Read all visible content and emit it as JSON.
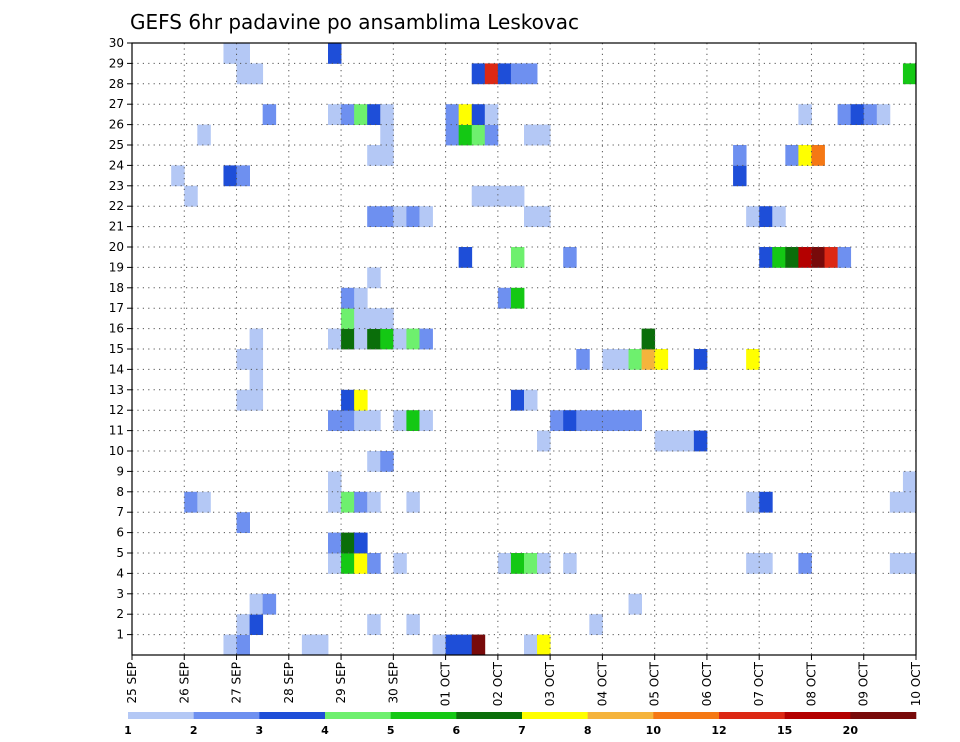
{
  "chart_data": {
    "type": "heatmap",
    "title": "GEFS 6hr padavine po ansamblima Leskovac",
    "y_ticks": [
      "1",
      "2",
      "3",
      "4",
      "5",
      "6",
      "7",
      "8",
      "9",
      "10",
      "11",
      "12",
      "13",
      "14",
      "15",
      "16",
      "17",
      "18",
      "19",
      "20",
      "21",
      "22",
      "23",
      "24",
      "25",
      "26",
      "27",
      "28",
      "29",
      "30"
    ],
    "x_ticks": [
      "25 SEP",
      "26 SEP",
      "27 SEP",
      "28 SEP",
      "29 SEP",
      "30 SEP",
      "01 OCT",
      "02 OCT",
      "03 OCT",
      "04 OCT",
      "05 OCT",
      "06 OCT",
      "07 OCT",
      "08 OCT",
      "09 OCT",
      "10 OCT"
    ],
    "x_range": [
      "2017-09-25T00",
      "2017-10-10T00"
    ],
    "y_range": [
      0,
      30
    ],
    "grid": true,
    "colorbar": {
      "labels": [
        "1",
        "2",
        "3",
        "4",
        "5",
        "6",
        "7",
        "8",
        "10",
        "12",
        "15",
        "20"
      ],
      "colors": [
        "#b4c8f5",
        "#6e90f0",
        "#1e4ed8",
        "#6ef06e",
        "#14c814",
        "#0a6e0a",
        "#ffff00",
        "#f5b43c",
        "#f57814",
        "#dc2814",
        "#b40000",
        "#780a0a"
      ]
    },
    "cells": [
      {
        "t": "2017-09-26T18",
        "m": 0,
        "v": 1
      },
      {
        "t": "2017-09-27T00",
        "m": 0,
        "v": 2
      },
      {
        "t": "2017-09-28T06",
        "m": 0,
        "v": 1
      },
      {
        "t": "2017-09-28T12",
        "m": 0,
        "v": 1
      },
      {
        "t": "2017-09-30T18",
        "m": 0,
        "v": 1
      },
      {
        "t": "2017-10-01T00",
        "m": 0,
        "v": 3
      },
      {
        "t": "2017-10-01T06",
        "m": 0,
        "v": 3
      },
      {
        "t": "2017-10-01T12",
        "m": 0,
        "v": 20
      },
      {
        "t": "2017-10-02T12",
        "m": 0,
        "v": 1
      },
      {
        "t": "2017-10-02T18",
        "m": 0,
        "v": 7
      },
      {
        "t": "2017-09-27T00",
        "m": 1,
        "v": 1
      },
      {
        "t": "2017-09-27T06",
        "m": 1,
        "v": 3
      },
      {
        "t": "2017-09-29T12",
        "m": 1,
        "v": 1
      },
      {
        "t": "2017-09-30T06",
        "m": 1,
        "v": 1
      },
      {
        "t": "2017-10-03T18",
        "m": 1,
        "v": 1
      },
      {
        "t": "2017-09-27T06",
        "m": 2,
        "v": 1
      },
      {
        "t": "2017-09-27T12",
        "m": 2,
        "v": 2
      },
      {
        "t": "2017-10-04T12",
        "m": 2,
        "v": 1
      },
      {
        "t": "2017-09-28T18",
        "m": 4,
        "v": 1
      },
      {
        "t": "2017-09-29T00",
        "m": 4,
        "v": 5
      },
      {
        "t": "2017-09-29T06",
        "m": 4,
        "v": 7
      },
      {
        "t": "2017-09-29T12",
        "m": 4,
        "v": 2
      },
      {
        "t": "2017-09-30T00",
        "m": 4,
        "v": 1
      },
      {
        "t": "2017-10-02T00",
        "m": 4,
        "v": 1
      },
      {
        "t": "2017-10-02T06",
        "m": 4,
        "v": 5
      },
      {
        "t": "2017-10-02T12",
        "m": 4,
        "v": 4
      },
      {
        "t": "2017-10-02T18",
        "m": 4,
        "v": 1
      },
      {
        "t": "2017-10-03T06",
        "m": 4,
        "v": 1
      },
      {
        "t": "2017-10-06T18",
        "m": 4,
        "v": 1
      },
      {
        "t": "2017-10-07T00",
        "m": 4,
        "v": 1
      },
      {
        "t": "2017-10-07T18",
        "m": 4,
        "v": 2
      },
      {
        "t": "2017-10-09T12",
        "m": 4,
        "v": 1
      },
      {
        "t": "2017-10-09T18",
        "m": 4,
        "v": 1
      },
      {
        "t": "2017-09-28T18",
        "m": 5,
        "v": 2
      },
      {
        "t": "2017-09-29T00",
        "m": 5,
        "v": 6
      },
      {
        "t": "2017-09-29T06",
        "m": 5,
        "v": 3
      },
      {
        "t": "2017-09-27T00",
        "m": 6,
        "v": 2
      },
      {
        "t": "2017-09-26T00",
        "m": 7,
        "v": 2
      },
      {
        "t": "2017-09-26T06",
        "m": 7,
        "v": 1
      },
      {
        "t": "2017-09-28T18",
        "m": 7,
        "v": 1
      },
      {
        "t": "2017-09-29T00",
        "m": 7,
        "v": 4
      },
      {
        "t": "2017-09-29T06",
        "m": 7,
        "v": 2
      },
      {
        "t": "2017-09-29T12",
        "m": 7,
        "v": 1
      },
      {
        "t": "2017-09-30T06",
        "m": 7,
        "v": 1
      },
      {
        "t": "2017-10-06T18",
        "m": 7,
        "v": 1
      },
      {
        "t": "2017-10-07T00",
        "m": 7,
        "v": 3
      },
      {
        "t": "2017-10-09T12",
        "m": 7,
        "v": 1
      },
      {
        "t": "2017-10-09T18",
        "m": 7,
        "v": 1
      },
      {
        "t": "2017-09-28T18",
        "m": 8,
        "v": 1
      },
      {
        "t": "2017-10-09T18",
        "m": 8,
        "v": 1
      },
      {
        "t": "2017-09-29T12",
        "m": 9,
        "v": 1
      },
      {
        "t": "2017-09-29T18",
        "m": 9,
        "v": 2
      },
      {
        "t": "2017-10-02T18",
        "m": 10,
        "v": 1
      },
      {
        "t": "2017-10-05T00",
        "m": 10,
        "v": 1
      },
      {
        "t": "2017-10-05T06",
        "m": 10,
        "v": 1
      },
      {
        "t": "2017-10-05T12",
        "m": 10,
        "v": 1
      },
      {
        "t": "2017-10-05T18",
        "m": 10,
        "v": 3
      },
      {
        "t": "2017-09-28T18",
        "m": 11,
        "v": 2
      },
      {
        "t": "2017-09-29T00",
        "m": 11,
        "v": 2
      },
      {
        "t": "2017-09-29T06",
        "m": 11,
        "v": 1
      },
      {
        "t": "2017-09-29T12",
        "m": 11,
        "v": 1
      },
      {
        "t": "2017-09-30T00",
        "m": 11,
        "v": 1
      },
      {
        "t": "2017-09-30T06",
        "m": 11,
        "v": 5
      },
      {
        "t": "2017-09-30T12",
        "m": 11,
        "v": 1
      },
      {
        "t": "2017-10-03T00",
        "m": 11,
        "v": 2
      },
      {
        "t": "2017-10-03T06",
        "m": 11,
        "v": 3
      },
      {
        "t": "2017-10-03T12",
        "m": 11,
        "v": 2
      },
      {
        "t": "2017-10-03T18",
        "m": 11,
        "v": 2
      },
      {
        "t": "2017-10-04T00",
        "m": 11,
        "v": 2
      },
      {
        "t": "2017-10-04T06",
        "m": 11,
        "v": 2
      },
      {
        "t": "2017-10-04T12",
        "m": 11,
        "v": 2
      },
      {
        "t": "2017-09-27T00",
        "m": 12,
        "v": 1
      },
      {
        "t": "2017-09-27T06",
        "m": 12,
        "v": 1
      },
      {
        "t": "2017-09-29T00",
        "m": 12,
        "v": 3
      },
      {
        "t": "2017-09-29T06",
        "m": 12,
        "v": 7
      },
      {
        "t": "2017-10-02T06",
        "m": 12,
        "v": 3
      },
      {
        "t": "2017-10-02T12",
        "m": 12,
        "v": 1
      },
      {
        "t": "2017-09-27T06",
        "m": 13,
        "v": 1
      },
      {
        "t": "2017-09-27T00",
        "m": 14,
        "v": 1
      },
      {
        "t": "2017-09-27T06",
        "m": 14,
        "v": 1
      },
      {
        "t": "2017-10-03T12",
        "m": 14,
        "v": 2
      },
      {
        "t": "2017-10-04T00",
        "m": 14,
        "v": 1
      },
      {
        "t": "2017-10-04T06",
        "m": 14,
        "v": 1
      },
      {
        "t": "2017-10-04T12",
        "m": 14,
        "v": 4
      },
      {
        "t": "2017-10-04T18",
        "m": 14,
        "v": 8
      },
      {
        "t": "2017-10-05T00",
        "m": 14,
        "v": 7
      },
      {
        "t": "2017-10-05T18",
        "m": 14,
        "v": 3
      },
      {
        "t": "2017-10-06T18",
        "m": 14,
        "v": 7
      },
      {
        "t": "2017-09-27T06",
        "m": 15,
        "v": 1
      },
      {
        "t": "2017-09-28T18",
        "m": 15,
        "v": 1
      },
      {
        "t": "2017-09-29T00",
        "m": 15,
        "v": 6
      },
      {
        "t": "2017-09-29T06",
        "m": 15,
        "v": 1
      },
      {
        "t": "2017-09-29T12",
        "m": 15,
        "v": 6
      },
      {
        "t": "2017-09-29T18",
        "m": 15,
        "v": 5
      },
      {
        "t": "2017-09-30T00",
        "m": 15,
        "v": 1
      },
      {
        "t": "2017-09-30T06",
        "m": 15,
        "v": 4
      },
      {
        "t": "2017-09-30T12",
        "m": 15,
        "v": 2
      },
      {
        "t": "2017-10-04T18",
        "m": 15,
        "v": 6
      },
      {
        "t": "2017-09-29T00",
        "m": 16,
        "v": 4
      },
      {
        "t": "2017-09-29T06",
        "m": 16,
        "v": 1
      },
      {
        "t": "2017-09-29T12",
        "m": 16,
        "v": 1
      },
      {
        "t": "2017-09-29T18",
        "m": 16,
        "v": 1
      },
      {
        "t": "2017-09-29T00",
        "m": 17,
        "v": 2
      },
      {
        "t": "2017-09-29T06",
        "m": 17,
        "v": 1
      },
      {
        "t": "2017-10-02T00",
        "m": 17,
        "v": 2
      },
      {
        "t": "2017-10-02T06",
        "m": 17,
        "v": 5
      },
      {
        "t": "2017-09-29T12",
        "m": 18,
        "v": 1
      },
      {
        "t": "2017-10-01T06",
        "m": 19,
        "v": 3
      },
      {
        "t": "2017-10-02T06",
        "m": 19,
        "v": 4
      },
      {
        "t": "2017-10-03T06",
        "m": 19,
        "v": 2
      },
      {
        "t": "2017-10-07T00",
        "m": 19,
        "v": 3
      },
      {
        "t": "2017-10-07T06",
        "m": 19,
        "v": 5
      },
      {
        "t": "2017-10-07T12",
        "m": 19,
        "v": 6
      },
      {
        "t": "2017-10-07T18",
        "m": 19,
        "v": 15
      },
      {
        "t": "2017-10-08T00",
        "m": 19,
        "v": 20
      },
      {
        "t": "2017-10-08T06",
        "m": 19,
        "v": 12
      },
      {
        "t": "2017-10-08T12",
        "m": 19,
        "v": 2
      },
      {
        "t": "2017-09-29T12",
        "m": 21,
        "v": 2
      },
      {
        "t": "2017-09-29T18",
        "m": 21,
        "v": 2
      },
      {
        "t": "2017-09-30T00",
        "m": 21,
        "v": 1
      },
      {
        "t": "2017-09-30T06",
        "m": 21,
        "v": 2
      },
      {
        "t": "2017-09-30T12",
        "m": 21,
        "v": 1
      },
      {
        "t": "2017-10-02T12",
        "m": 21,
        "v": 1
      },
      {
        "t": "2017-10-02T18",
        "m": 21,
        "v": 1
      },
      {
        "t": "2017-10-06T18",
        "m": 21,
        "v": 1
      },
      {
        "t": "2017-10-07T00",
        "m": 21,
        "v": 3
      },
      {
        "t": "2017-10-07T06",
        "m": 21,
        "v": 1
      },
      {
        "t": "2017-09-26T00",
        "m": 22,
        "v": 1
      },
      {
        "t": "2017-10-01T12",
        "m": 22,
        "v": 1
      },
      {
        "t": "2017-10-01T18",
        "m": 22,
        "v": 1
      },
      {
        "t": "2017-10-02T00",
        "m": 22,
        "v": 1
      },
      {
        "t": "2017-10-02T06",
        "m": 22,
        "v": 1
      },
      {
        "t": "2017-09-25T18",
        "m": 23,
        "v": 1
      },
      {
        "t": "2017-09-26T18",
        "m": 23,
        "v": 3
      },
      {
        "t": "2017-09-27T00",
        "m": 23,
        "v": 2
      },
      {
        "t": "2017-10-06T12",
        "m": 23,
        "v": 3
      },
      {
        "t": "2017-09-29T12",
        "m": 24,
        "v": 1
      },
      {
        "t": "2017-09-29T18",
        "m": 24,
        "v": 1
      },
      {
        "t": "2017-10-06T12",
        "m": 24,
        "v": 2
      },
      {
        "t": "2017-10-07T12",
        "m": 24,
        "v": 2
      },
      {
        "t": "2017-10-07T18",
        "m": 24,
        "v": 7
      },
      {
        "t": "2017-10-08T00",
        "m": 24,
        "v": 10
      },
      {
        "t": "2017-09-26T06",
        "m": 25,
        "v": 1
      },
      {
        "t": "2017-09-29T18",
        "m": 25,
        "v": 1
      },
      {
        "t": "2017-10-01T00",
        "m": 25,
        "v": 2
      },
      {
        "t": "2017-10-01T06",
        "m": 25,
        "v": 5
      },
      {
        "t": "2017-10-01T12",
        "m": 25,
        "v": 4
      },
      {
        "t": "2017-10-01T18",
        "m": 25,
        "v": 2
      },
      {
        "t": "2017-10-02T12",
        "m": 25,
        "v": 1
      },
      {
        "t": "2017-10-02T18",
        "m": 25,
        "v": 1
      },
      {
        "t": "2017-09-27T12",
        "m": 26,
        "v": 2
      },
      {
        "t": "2017-09-28T18",
        "m": 26,
        "v": 1
      },
      {
        "t": "2017-09-29T00",
        "m": 26,
        "v": 2
      },
      {
        "t": "2017-09-29T06",
        "m": 26,
        "v": 4
      },
      {
        "t": "2017-09-29T12",
        "m": 26,
        "v": 3
      },
      {
        "t": "2017-09-29T18",
        "m": 26,
        "v": 1
      },
      {
        "t": "2017-10-01T00",
        "m": 26,
        "v": 2
      },
      {
        "t": "2017-10-01T06",
        "m": 26,
        "v": 7
      },
      {
        "t": "2017-10-01T12",
        "m": 26,
        "v": 3
      },
      {
        "t": "2017-10-01T18",
        "m": 26,
        "v": 1
      },
      {
        "t": "2017-10-07T18",
        "m": 26,
        "v": 1
      },
      {
        "t": "2017-10-08T12",
        "m": 26,
        "v": 2
      },
      {
        "t": "2017-10-08T18",
        "m": 26,
        "v": 3
      },
      {
        "t": "2017-10-09T00",
        "m": 26,
        "v": 2
      },
      {
        "t": "2017-10-09T06",
        "m": 26,
        "v": 1
      },
      {
        "t": "2017-09-27T00",
        "m": 28,
        "v": 1
      },
      {
        "t": "2017-09-27T06",
        "m": 28,
        "v": 1
      },
      {
        "t": "2017-10-01T12",
        "m": 28,
        "v": 3
      },
      {
        "t": "2017-10-01T18",
        "m": 28,
        "v": 12
      },
      {
        "t": "2017-10-02T00",
        "m": 28,
        "v": 3
      },
      {
        "t": "2017-10-02T06",
        "m": 28,
        "v": 2
      },
      {
        "t": "2017-10-02T12",
        "m": 28,
        "v": 2
      },
      {
        "t": "2017-10-09T18",
        "m": 28,
        "v": 5
      },
      {
        "t": "2017-09-26T18",
        "m": 29,
        "v": 1
      },
      {
        "t": "2017-09-27T00",
        "m": 29,
        "v": 1
      },
      {
        "t": "2017-09-28T18",
        "m": 29,
        "v": 3
      }
    ]
  }
}
